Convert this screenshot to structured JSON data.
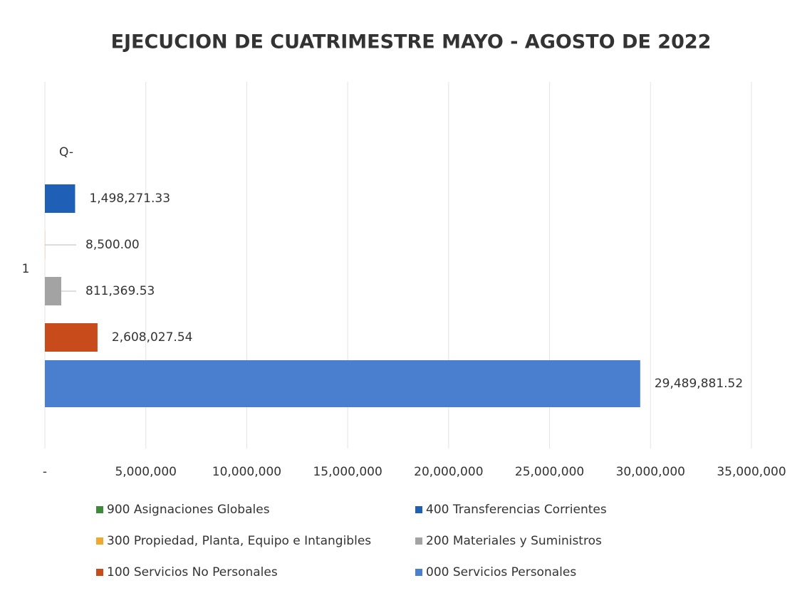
{
  "chart_data": {
    "type": "hbar",
    "title": "EJECUCION DE CUATRIMESTRE MAYO - AGOSTO DE 2022",
    "categories": [
      "1"
    ],
    "series": [
      {
        "name": "900 Asignaciones Globales",
        "color": "#3f8a3a",
        "values": [
          0
        ],
        "value_labels": [
          "Q-"
        ]
      },
      {
        "name": "400 Transferencias Corrientes",
        "color": "#1f5fb5",
        "values": [
          1498271.33
        ],
        "value_labels": [
          "1,498,271.33"
        ]
      },
      {
        "name": "300 Propiedad, Planta, Equipo e Intangibles",
        "color": "#f0a830",
        "values": [
          8500.0
        ],
        "value_labels": [
          "8,500.00"
        ]
      },
      {
        "name": "200 Materiales y Suministros",
        "color": "#a3a3a3",
        "values": [
          811369.53
        ],
        "value_labels": [
          "811,369.53"
        ]
      },
      {
        "name": "100 Servicios No Personales",
        "color": "#c84b1c",
        "values": [
          2608027.54
        ],
        "value_labels": [
          "2,608,027.54"
        ]
      },
      {
        "name": "000 Servicios Personales",
        "color": "#4a7fcf",
        "values": [
          29489881.52
        ],
        "value_labels": [
          "29,489,881.52"
        ]
      }
    ],
    "xlim": [
      0,
      35000000
    ],
    "xticks": [
      {
        "value": 0,
        "label": "-"
      },
      {
        "value": 5000000,
        "label": "5,000,000"
      },
      {
        "value": 10000000,
        "label": "10,000,000"
      },
      {
        "value": 15000000,
        "label": "15,000,000"
      },
      {
        "value": 20000000,
        "label": "20,000,000"
      },
      {
        "value": 25000000,
        "label": "25,000,000"
      },
      {
        "value": 30000000,
        "label": "30,000,000"
      },
      {
        "value": 35000000,
        "label": "35,000,000"
      }
    ],
    "grid": true
  }
}
